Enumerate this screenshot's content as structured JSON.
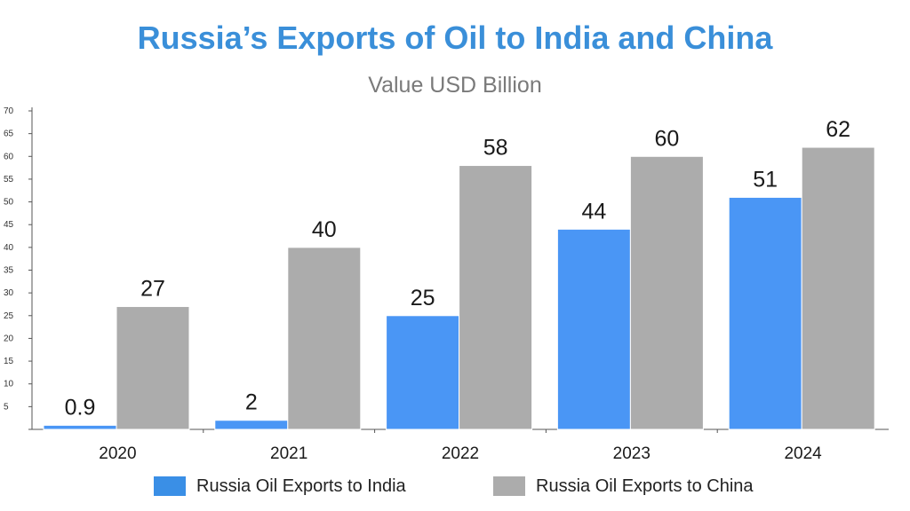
{
  "chart_data": {
    "type": "bar",
    "title": "Russia’s Exports of Oil to India and China",
    "subtitle": "Value USD Billion",
    "categories": [
      "2020",
      "2021",
      "2022",
      "2023",
      "2024"
    ],
    "series": [
      {
        "name": "Russia Oil Exports to India",
        "values": [
          0.9,
          2,
          25,
          44,
          51
        ],
        "labels": [
          "0.9",
          "2",
          "25",
          "44",
          "51"
        ],
        "color": "#4a96f5"
      },
      {
        "name": "Russia Oil Exports to China",
        "values": [
          27,
          40,
          58,
          60,
          62
        ],
        "labels": [
          "27",
          "40",
          "58",
          "60",
          "62"
        ],
        "color": "#acacac"
      }
    ],
    "ylim": [
      0,
      70
    ],
    "yticks": [
      5,
      10,
      15,
      20,
      25,
      30,
      35,
      40,
      45,
      50,
      55,
      60,
      65,
      70
    ],
    "grid": false,
    "legend": "bottom"
  }
}
